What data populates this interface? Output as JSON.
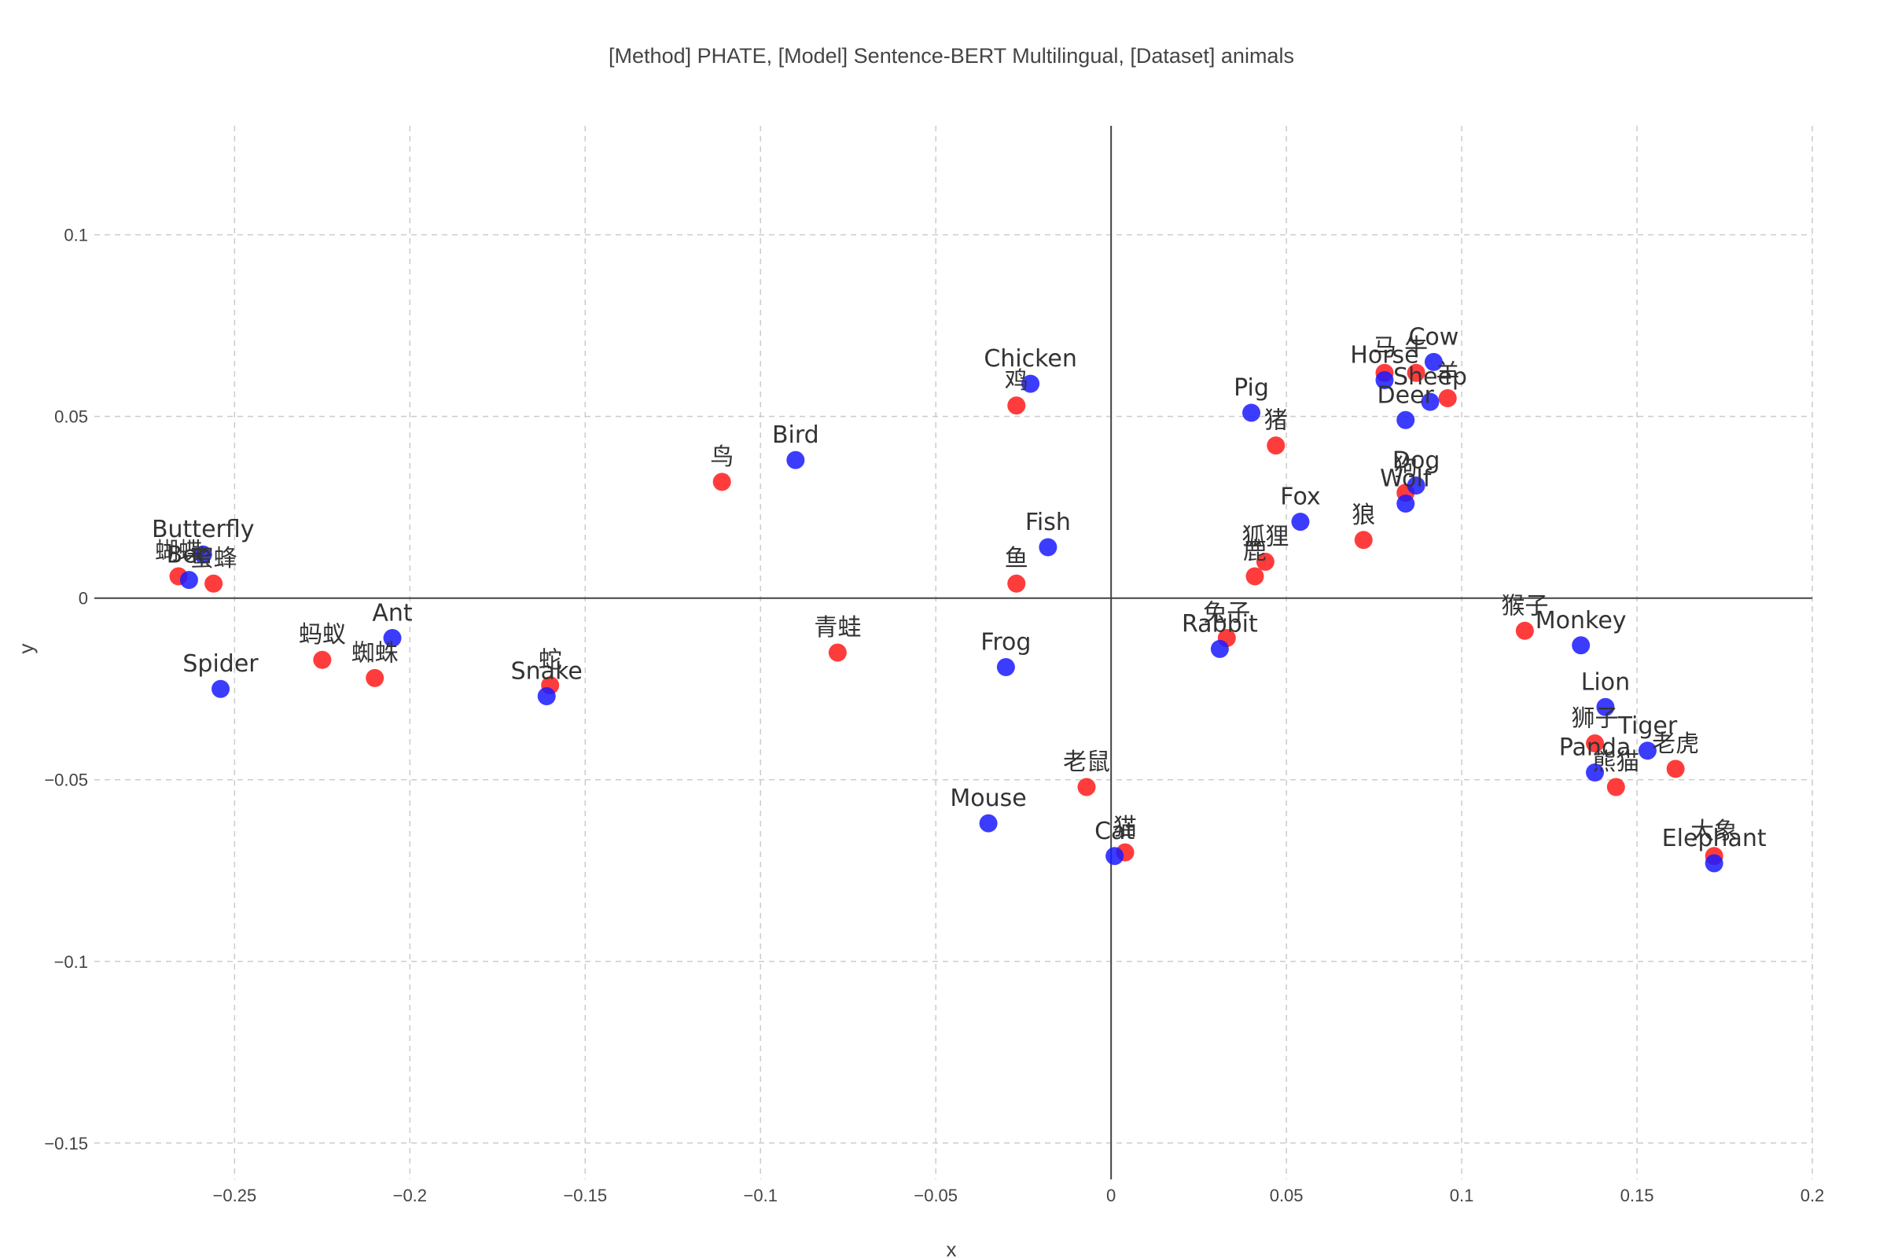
{
  "chart_data": {
    "type": "scatter",
    "title": "[Method] PHATE, [Model] Sentence-BERT Multilingual, [Dataset] animals",
    "xlabel": "x",
    "ylabel": "y",
    "xlim": [
      -0.29,
      0.2
    ],
    "ylim": [
      -0.16,
      0.13
    ],
    "grid": true,
    "legend": "none",
    "x_ticks": [
      -0.25,
      -0.2,
      -0.15,
      -0.1,
      -0.05,
      0,
      0.05,
      0.1,
      0.15,
      0.2
    ],
    "x_tick_labels": [
      "−0.25",
      "−0.2",
      "−0.15",
      "−0.1",
      "−0.05",
      "0",
      "0.05",
      "0.1",
      "0.15",
      "0.2"
    ],
    "y_ticks": [
      0.1,
      0.05,
      0,
      -0.05,
      -0.1,
      -0.15
    ],
    "y_tick_labels": [
      "0.1",
      "0.05",
      "0",
      "−0.05",
      "−0.1",
      "−0.15"
    ],
    "series": [
      {
        "color": "#ff1a1a",
        "points": [
          {
            "label": "蝴蝶",
            "x": -0.266,
            "y": 0.006
          },
          {
            "label": "蜜蜂",
            "x": -0.256,
            "y": 0.004
          },
          {
            "label": "蚂蚁",
            "x": -0.225,
            "y": -0.017
          },
          {
            "label": "蜘蛛",
            "x": -0.21,
            "y": -0.022
          },
          {
            "label": "蛇",
            "x": -0.16,
            "y": -0.024
          },
          {
            "label": "鸟",
            "x": -0.111,
            "y": 0.032
          },
          {
            "label": "青蛙",
            "x": -0.078,
            "y": -0.015
          },
          {
            "label": "鸡",
            "x": -0.027,
            "y": 0.053
          },
          {
            "label": "鱼",
            "x": -0.027,
            "y": 0.004
          },
          {
            "label": "老鼠",
            "x": -0.007,
            "y": -0.052
          },
          {
            "label": "猫",
            "x": 0.004,
            "y": -0.07
          },
          {
            "label": "兔子",
            "x": 0.033,
            "y": -0.011
          },
          {
            "label": "鹿",
            "x": 0.041,
            "y": 0.006
          },
          {
            "label": "狐狸",
            "x": 0.044,
            "y": 0.01
          },
          {
            "label": "猪",
            "x": 0.047,
            "y": 0.042
          },
          {
            "label": "狼",
            "x": 0.072,
            "y": 0.016
          },
          {
            "label": "马",
            "x": 0.078,
            "y": 0.062
          },
          {
            "label": "牛",
            "x": 0.087,
            "y": 0.062
          },
          {
            "label": "羊",
            "x": 0.096,
            "y": 0.055
          },
          {
            "label": "狗",
            "x": 0.084,
            "y": 0.029
          },
          {
            "label": "猴子",
            "x": 0.118,
            "y": -0.009
          },
          {
            "label": "狮子",
            "x": 0.138,
            "y": -0.04
          },
          {
            "label": "熊猫",
            "x": 0.144,
            "y": -0.052
          },
          {
            "label": "老虎",
            "x": 0.161,
            "y": -0.047
          },
          {
            "label": "大象",
            "x": 0.172,
            "y": -0.071
          }
        ]
      },
      {
        "color": "#1a1aff",
        "points": [
          {
            "label": "Butterfly",
            "x": -0.259,
            "y": 0.012
          },
          {
            "label": "Bee",
            "x": -0.263,
            "y": 0.005
          },
          {
            "label": "Spider",
            "x": -0.254,
            "y": -0.025
          },
          {
            "label": "Ant",
            "x": -0.205,
            "y": -0.011
          },
          {
            "label": "Snake",
            "x": -0.161,
            "y": -0.027
          },
          {
            "label": "Bird",
            "x": -0.09,
            "y": 0.038
          },
          {
            "label": "Chicken",
            "x": -0.023,
            "y": 0.059
          },
          {
            "label": "Fish",
            "x": -0.018,
            "y": 0.014
          },
          {
            "label": "Frog",
            "x": -0.03,
            "y": -0.019
          },
          {
            "label": "Mouse",
            "x": -0.035,
            "y": -0.062
          },
          {
            "label": "Cat",
            "x": 0.001,
            "y": -0.071
          },
          {
            "label": "Rabbit",
            "x": 0.031,
            "y": -0.014
          },
          {
            "label": "Pig",
            "x": 0.04,
            "y": 0.051
          },
          {
            "label": "Fox",
            "x": 0.054,
            "y": 0.021
          },
          {
            "label": "Horse",
            "x": 0.078,
            "y": 0.06
          },
          {
            "label": "Cow",
            "x": 0.092,
            "y": 0.065
          },
          {
            "label": "Sheep",
            "x": 0.091,
            "y": 0.054
          },
          {
            "label": "Deer",
            "x": 0.084,
            "y": 0.049
          },
          {
            "label": "Dog",
            "x": 0.087,
            "y": 0.031
          },
          {
            "label": "Wolf",
            "x": 0.084,
            "y": 0.026
          },
          {
            "label": "Monkey",
            "x": 0.134,
            "y": -0.013
          },
          {
            "label": "Lion",
            "x": 0.141,
            "y": -0.03
          },
          {
            "label": "Panda",
            "x": 0.138,
            "y": -0.048
          },
          {
            "label": "Tiger",
            "x": 0.153,
            "y": -0.042
          },
          {
            "label": "Elephant",
            "x": 0.172,
            "y": -0.073
          }
        ]
      }
    ]
  }
}
